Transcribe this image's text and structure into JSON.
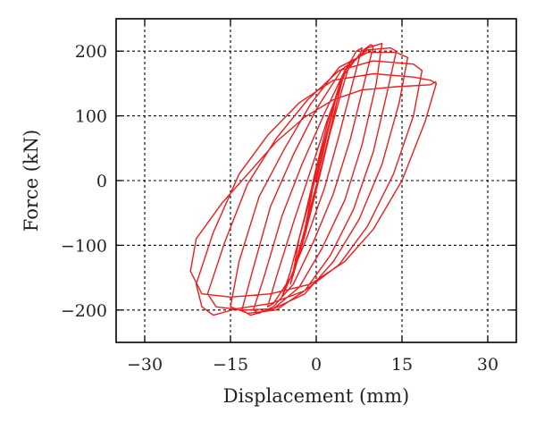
{
  "chart_data": {
    "type": "line",
    "title": "",
    "xlabel": "Displacement (mm)",
    "ylabel": "Force (kN)",
    "xlim": [
      -35,
      35
    ],
    "ylim": [
      -250,
      250
    ],
    "xticks": [
      -30,
      -15,
      0,
      15,
      30
    ],
    "yticks": [
      -200,
      -100,
      0,
      100,
      200
    ],
    "xtick_labels": [
      "−30",
      "−15",
      "0",
      "15",
      "30"
    ],
    "ytick_labels": [
      "−200",
      "−100",
      "0",
      "100",
      "200"
    ],
    "grid": true,
    "grid_style": "dashed",
    "legend": "none",
    "series_color": "#ee1c1c",
    "series": [
      {
        "values": [
          [
            0,
            0
          ],
          [
            1,
            35
          ],
          [
            2,
            75
          ],
          [
            3,
            110
          ],
          [
            3.5,
            130
          ],
          [
            2,
            80
          ],
          [
            0,
            15
          ],
          [
            -1,
            -30
          ],
          [
            -2,
            -75
          ],
          [
            -3,
            -110
          ],
          [
            -3.5,
            -130
          ],
          [
            -2,
            -85
          ],
          [
            0,
            -15
          ],
          [
            1.5,
            40
          ],
          [
            3,
            95
          ],
          [
            4,
            140
          ],
          [
            4.5,
            160
          ],
          [
            3,
            115
          ],
          [
            1,
            40
          ],
          [
            -1,
            -25
          ],
          [
            -3,
            -90
          ],
          [
            -4,
            -140
          ],
          [
            -4.5,
            -160
          ],
          [
            -3,
            -115
          ],
          [
            -1,
            -40
          ],
          [
            1,
            25
          ],
          [
            3,
            100
          ],
          [
            5,
            170
          ],
          [
            6,
            185
          ],
          [
            4.5,
            140
          ],
          [
            2,
            60
          ],
          [
            0,
            -15
          ],
          [
            -2,
            -75
          ],
          [
            -4,
            -140
          ],
          [
            -5.5,
            -170
          ],
          [
            -6,
            -180
          ],
          [
            -4.5,
            -140
          ],
          [
            -2,
            -55
          ],
          [
            0,
            20
          ],
          [
            2,
            90
          ],
          [
            4.5,
            160
          ],
          [
            7,
            200
          ],
          [
            8,
            205
          ],
          [
            6.5,
            155
          ],
          [
            4,
            70
          ],
          [
            1.5,
            -10
          ],
          [
            -1.5,
            -85
          ],
          [
            -4.5,
            -150
          ],
          [
            -7.5,
            -190
          ],
          [
            -8.5,
            -195
          ],
          [
            -7,
            -150
          ],
          [
            -4,
            -65
          ],
          [
            -1,
            15
          ],
          [
            2,
            95
          ],
          [
            5,
            165
          ],
          [
            8,
            200
          ],
          [
            9.5,
            210
          ],
          [
            10,
            208
          ],
          [
            8.5,
            155
          ],
          [
            6,
            65
          ],
          [
            3,
            -20
          ],
          [
            -0.5,
            -95
          ],
          [
            -4,
            -160
          ],
          [
            -7.5,
            -195
          ],
          [
            -10,
            -205
          ],
          [
            -11,
            -200
          ],
          [
            -9,
            -145
          ],
          [
            -6,
            -55
          ],
          [
            -2.5,
            25
          ],
          [
            1.5,
            105
          ],
          [
            5,
            170
          ],
          [
            9,
            205
          ],
          [
            11.5,
            212
          ],
          [
            10.5,
            150
          ],
          [
            8,
            55
          ],
          [
            5,
            -30
          ],
          [
            1,
            -105
          ],
          [
            -3,
            -165
          ],
          [
            -7.5,
            -198
          ],
          [
            -11.5,
            -208
          ],
          [
            -13,
            -200
          ],
          [
            -11,
            -135
          ],
          [
            -8,
            -40
          ],
          [
            -4,
            40
          ],
          [
            0,
            110
          ],
          [
            4.5,
            172
          ],
          [
            9,
            202
          ],
          [
            13,
            205
          ],
          [
            14,
            200
          ],
          [
            12.5,
            140
          ],
          [
            10,
            45
          ],
          [
            6.5,
            -45
          ],
          [
            2.5,
            -115
          ],
          [
            -2,
            -170
          ],
          [
            -7,
            -200
          ],
          [
            -12,
            -205
          ],
          [
            -15,
            -195
          ],
          [
            -13.5,
            -125
          ],
          [
            -10,
            -25
          ],
          [
            -5.5,
            50
          ],
          [
            -1,
            118
          ],
          [
            4,
            175
          ],
          [
            9,
            198
          ],
          [
            14,
            198
          ],
          [
            16,
            190
          ],
          [
            14.5,
            120
          ],
          [
            11.5,
            25
          ],
          [
            7.5,
            -60
          ],
          [
            3,
            -125
          ],
          [
            -2,
            -175
          ],
          [
            -7.5,
            -198
          ],
          [
            -13,
            -200
          ],
          [
            -17.5,
            -195
          ],
          [
            -19,
            -175
          ],
          [
            -16,
            -95
          ],
          [
            -12,
            -5
          ],
          [
            -7,
            65
          ],
          [
            -1.5,
            125
          ],
          [
            4,
            170
          ],
          [
            10,
            185
          ],
          [
            17,
            180
          ],
          [
            18.5,
            170
          ],
          [
            17,
            100
          ],
          [
            13.5,
            10
          ],
          [
            9,
            -70
          ],
          [
            4,
            -130
          ],
          [
            -2,
            -170
          ],
          [
            -8,
            -190
          ],
          [
            -14,
            -198
          ],
          [
            -18,
            -208
          ],
          [
            -20,
            -195
          ],
          [
            -21,
            -160
          ],
          [
            -18,
            -80
          ],
          [
            -13.5,
            10
          ],
          [
            -8.5,
            70
          ],
          [
            -3,
            120
          ],
          [
            3,
            155
          ],
          [
            10,
            165
          ],
          [
            17,
            160
          ],
          [
            20,
            155
          ],
          [
            21,
            150
          ],
          [
            19,
            90
          ],
          [
            15,
            0
          ],
          [
            10,
            -75
          ],
          [
            5,
            -125
          ],
          [
            -1,
            -160
          ],
          [
            -8,
            -175
          ],
          [
            -15,
            -180
          ],
          [
            -20,
            -175
          ],
          [
            -22,
            -140
          ],
          [
            -21,
            -90
          ],
          [
            -16.5,
            -35
          ],
          [
            -12,
            10
          ],
          [
            -7,
            60
          ],
          [
            -2,
            98
          ],
          [
            3,
            125
          ],
          [
            8,
            140
          ],
          [
            14,
            145
          ],
          [
            20,
            148
          ],
          [
            21,
            153
          ]
        ]
      }
    ]
  }
}
